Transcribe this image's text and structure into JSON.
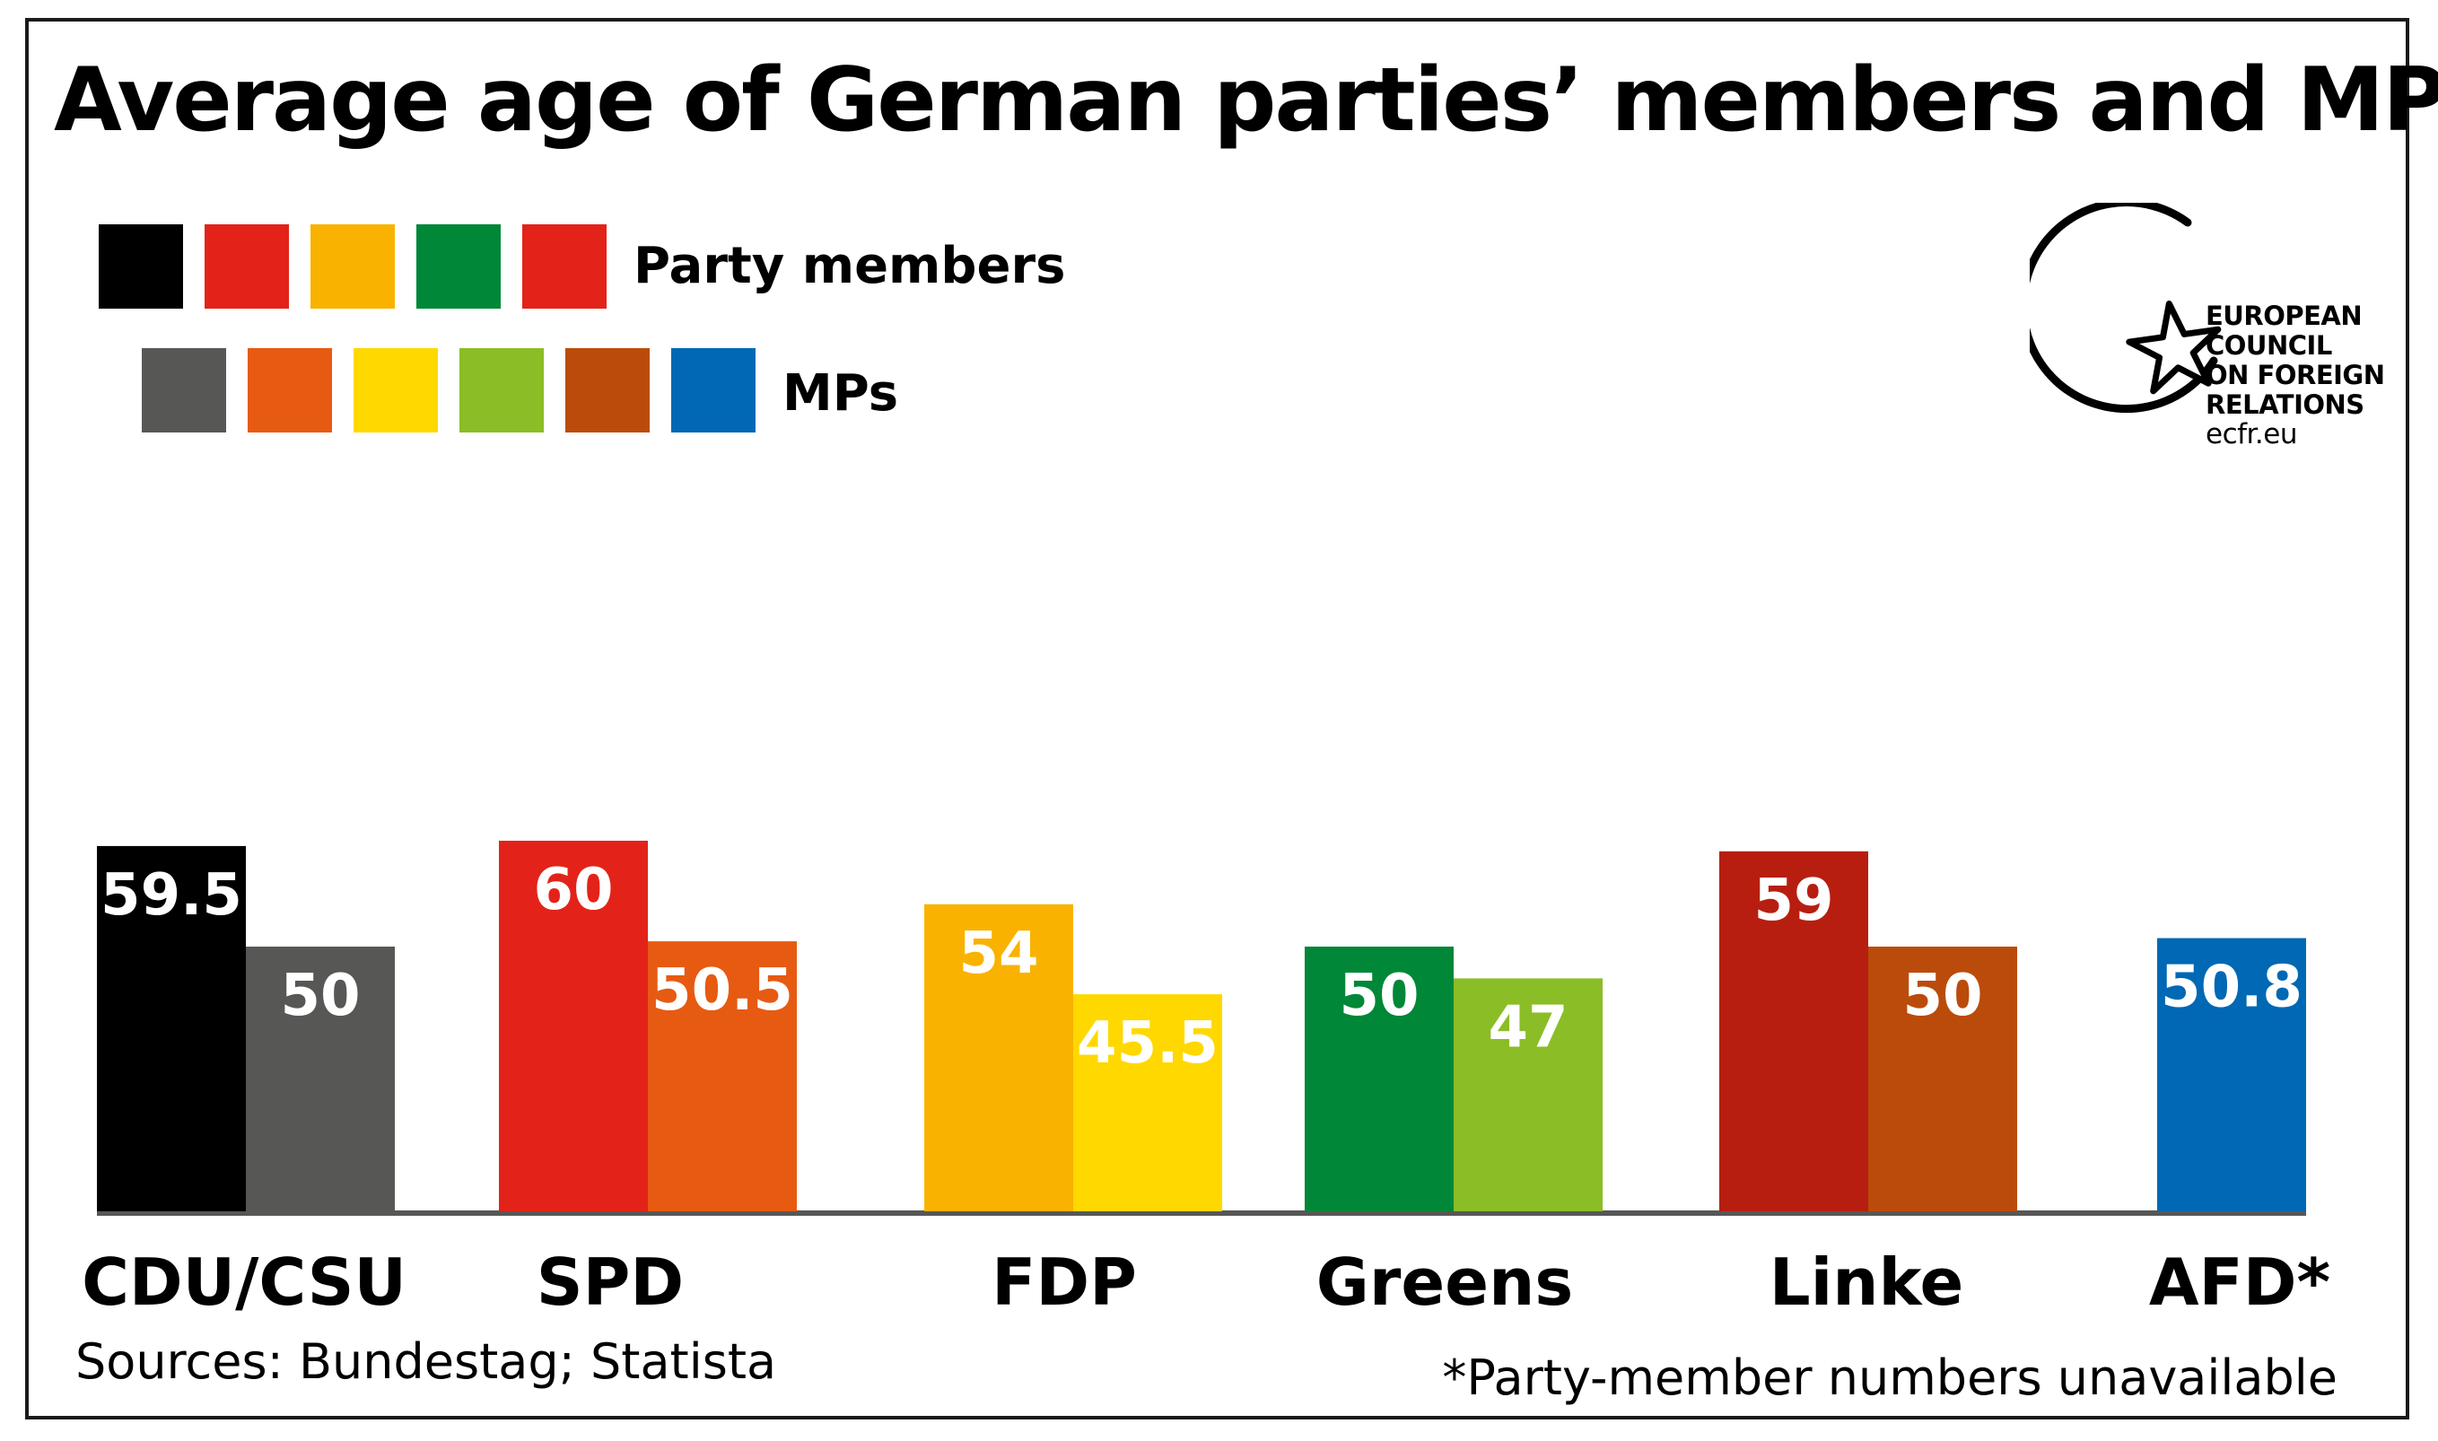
{
  "title": "Average age of German parties’ members and MPs",
  "legend": {
    "members_label": "Party members",
    "mps_label": "MPs",
    "members_colors": [
      "#000000",
      "#e3231a",
      "#f9b200",
      "#008737",
      "#e3231a"
    ],
    "mps_colors": [
      "#575756",
      "#e75a12",
      "#ffd800",
      "#8bbd26",
      "#bb4b0b",
      "#0068b4"
    ]
  },
  "logo": {
    "lines": [
      "EUROPEAN",
      "COUNCIL",
      "ON FOREIGN",
      "RELATIONS"
    ],
    "url": "ecfr.eu"
  },
  "chart_data": {
    "type": "bar",
    "title": "Average age of German parties’ members and MPs",
    "categories": [
      "CDU/CSU",
      "SPD",
      "FDP",
      "Greens",
      "Linke",
      "AFD*"
    ],
    "series": [
      {
        "name": "Party members",
        "values": [
          59.5,
          60,
          54,
          50,
          59,
          null
        ],
        "labels": [
          "59.5",
          "60",
          "54",
          "50",
          "59",
          null
        ],
        "colors": [
          "#000000",
          "#e3231a",
          "#f9b200",
          "#008737",
          "#b71e10",
          null
        ]
      },
      {
        "name": "MPs",
        "values": [
          50,
          50.5,
          45.5,
          47,
          50,
          50.8
        ],
        "labels": [
          "50",
          "50.5",
          "45.5",
          "47",
          "50",
          "50.8"
        ],
        "colors": [
          "#575756",
          "#e75a12",
          "#ffd800",
          "#8bbd26",
          "#bb4b0b",
          "#0068b4"
        ]
      }
    ],
    "ylim": [
      0,
      60
    ],
    "grid": false,
    "legend_position": "top-left"
  },
  "footer": {
    "sources": "Sources: Bundestag; Statista",
    "note": "*Party-member numbers unavailable"
  }
}
